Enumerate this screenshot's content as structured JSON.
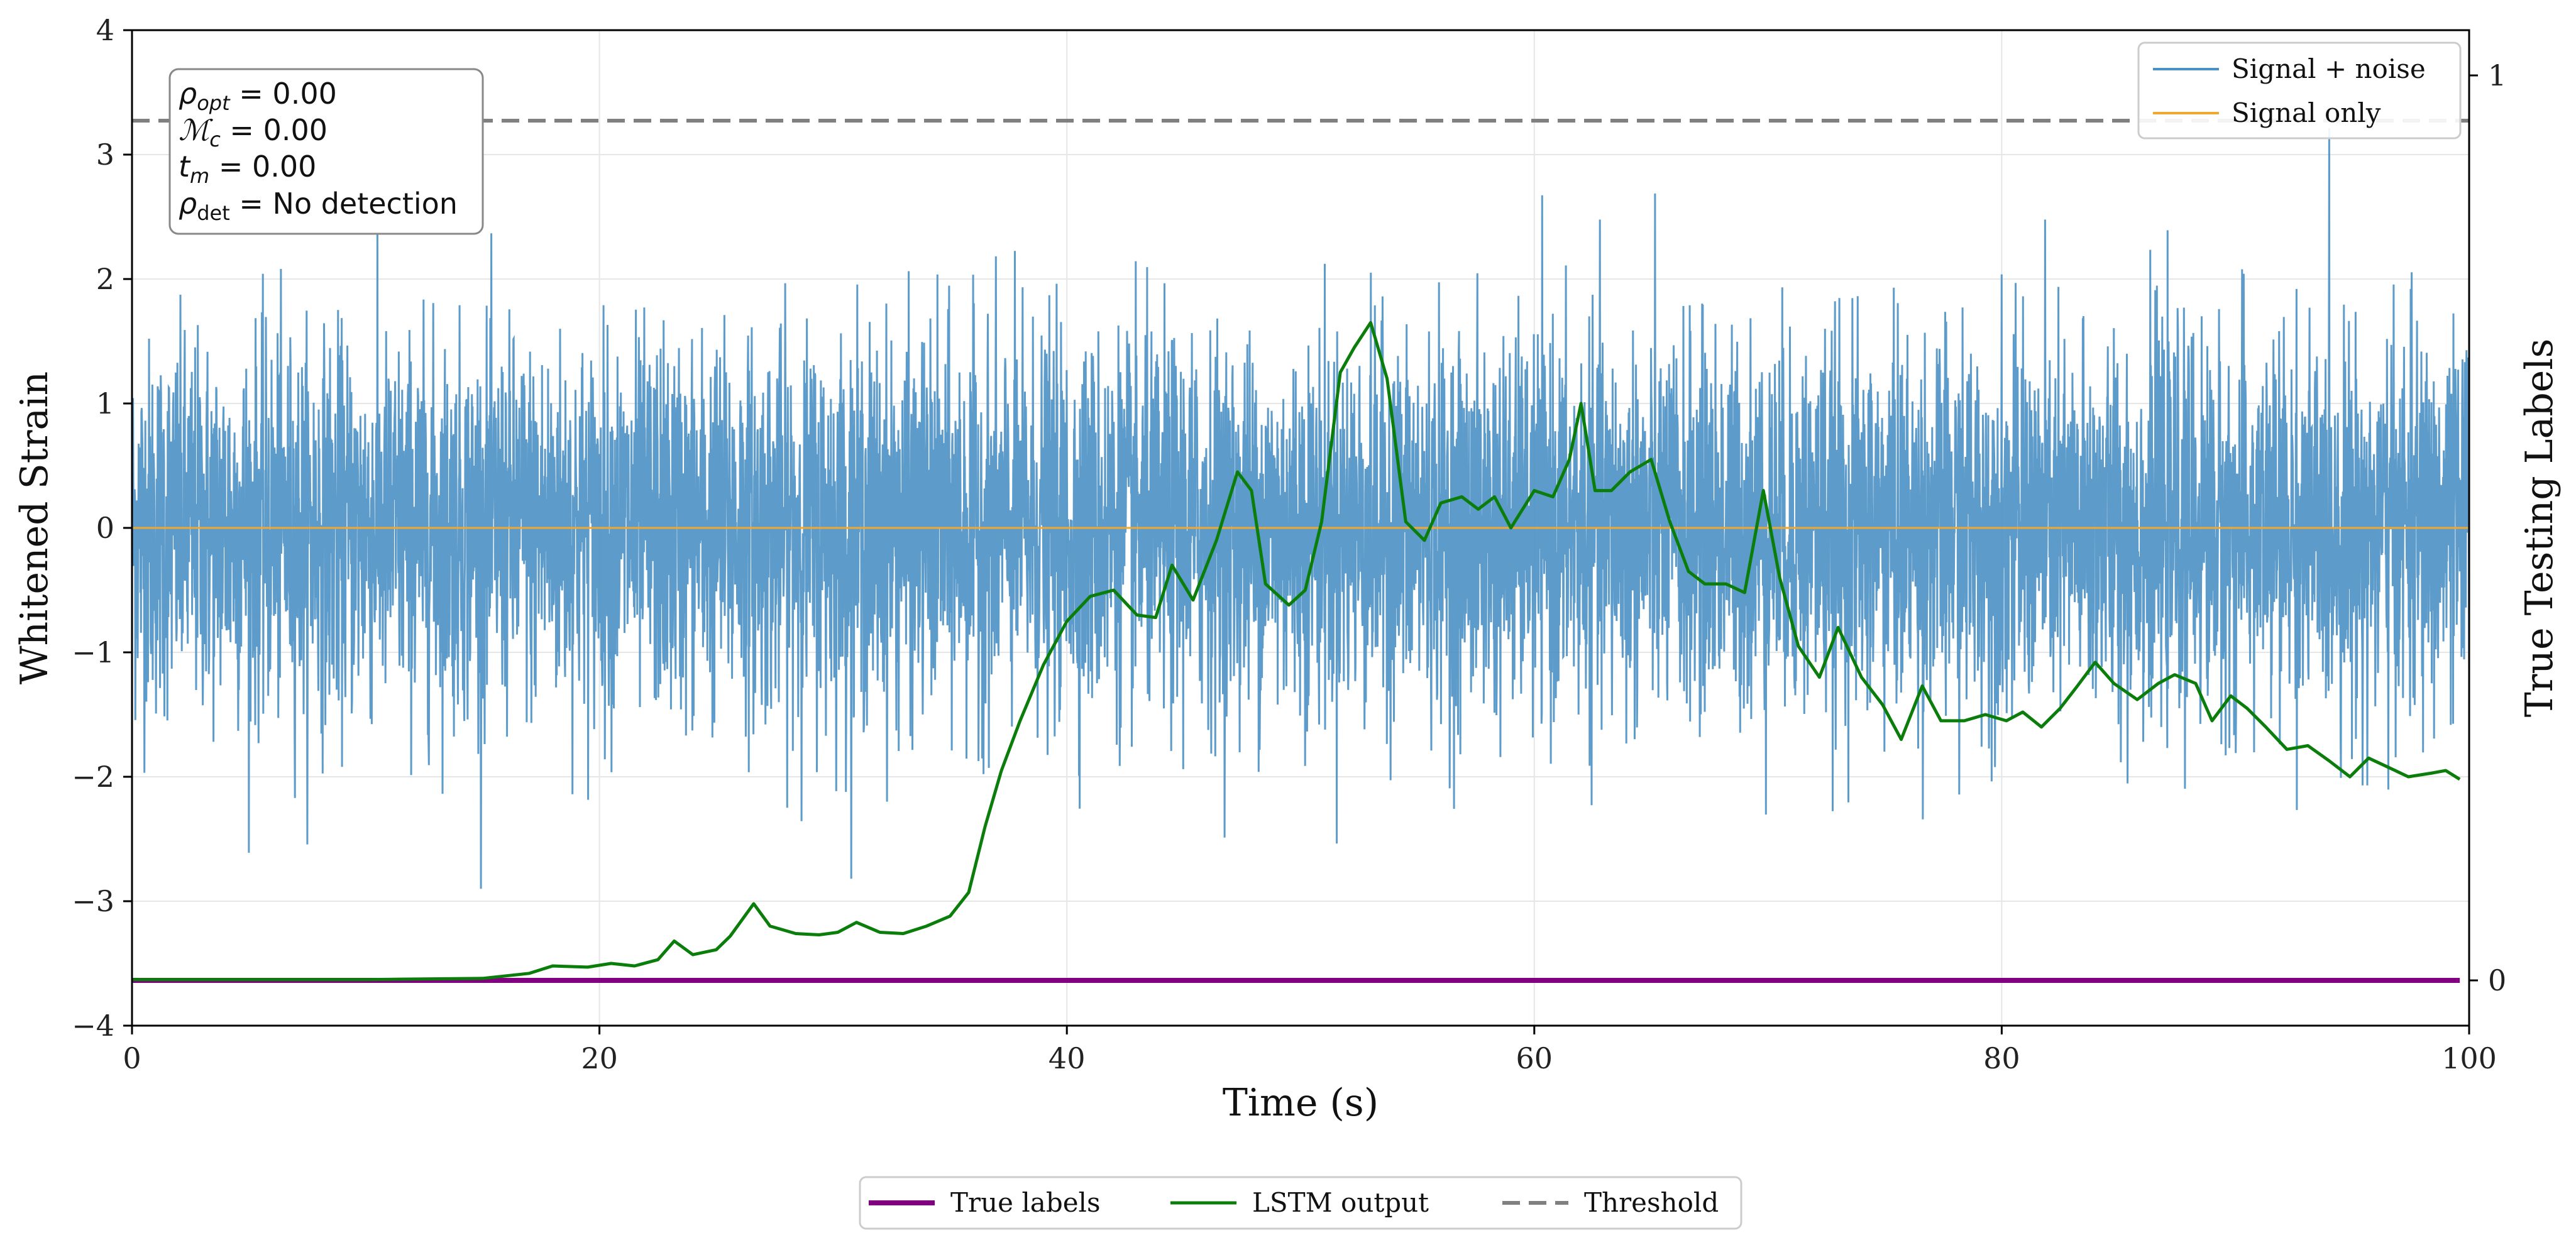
{
  "chart_data": {
    "type": "line",
    "xlabel": "Time (s)",
    "ylabel": "Whitened Strain",
    "y2label": "True Testing Labels",
    "xlim": [
      0,
      100
    ],
    "ylim": [
      -4,
      4
    ],
    "y2lim": [
      -0.05,
      1.05
    ],
    "xticks": [
      "0",
      "20",
      "40",
      "60",
      "80",
      "100"
    ],
    "yticks": [
      "4",
      "3",
      "2",
      "1",
      "0",
      "−1",
      "−2",
      "−3",
      "−4"
    ],
    "y2ticks": [
      "1",
      "0"
    ],
    "stats": {
      "rho_opt": "= 0.00",
      "mc": "= 0.00",
      "tm": "= 0.00",
      "rho_det": "= No detection"
    },
    "legend_upper": [
      "Signal + noise",
      "Signal only"
    ],
    "legend_lower": [
      "True labels",
      "LSTM output",
      "Threshold"
    ],
    "colors": {
      "noise": "#4a90c4",
      "signal": "#f0a830",
      "true_labels": "#800080",
      "lstm": "#0a7d0a",
      "threshold": "#808080"
    },
    "series": [
      {
        "name": "Signal + noise",
        "axis": "left",
        "description_values": "stationary noise, approx. std 0.75, range -2.9 to 4.0",
        "noise_std": 0.75
      },
      {
        "name": "Signal only",
        "axis": "left",
        "x": [
          0,
          100
        ],
        "values": [
          0,
          0
        ]
      },
      {
        "name": "True labels",
        "axis": "right",
        "x": [
          0,
          100
        ],
        "values": [
          0,
          0
        ]
      },
      {
        "name": "Threshold",
        "axis": "right",
        "x": [
          0,
          100
        ],
        "values": [
          0.95,
          0.95
        ]
      },
      {
        "name": "LSTM output",
        "axis": "left",
        "x": [
          0,
          10,
          15,
          17,
          18,
          19.5,
          20.5,
          21.5,
          22.5,
          23.2,
          24,
          25,
          25.6,
          26.6,
          27.3,
          28.4,
          29.4,
          30.2,
          31,
          32,
          33,
          34,
          35,
          35.8,
          36.5,
          37.2,
          38,
          39,
          40,
          41,
          42,
          43,
          43.8,
          44.5,
          45.4,
          46.4,
          47.3,
          47.9,
          48.5,
          49.5,
          50.2,
          50.9,
          51.7,
          52.3,
          53,
          53.7,
          54.5,
          55.3,
          56,
          56.9,
          57.6,
          58.3,
          59,
          60,
          60.8,
          61.5,
          62,
          62.6,
          63.3,
          64.1,
          65,
          65.8,
          66.6,
          67.3,
          68.2,
          69,
          69.8,
          70.5,
          71.3,
          72.2,
          73,
          74,
          74.9,
          75.7,
          76.6,
          77.4,
          78.4,
          79.3,
          80.2,
          80.9,
          81.7,
          82.5,
          83.2,
          84,
          84.8,
          85.8,
          86.7,
          87.4,
          88.3,
          89,
          89.8,
          90.5,
          91.3,
          92.2,
          93.1,
          94,
          94.9,
          95.7,
          96.5,
          97.4,
          98.4,
          99,
          99.6
        ],
        "values": [
          -3.63,
          -3.63,
          -3.62,
          -3.58,
          -3.52,
          -3.53,
          -3.5,
          -3.52,
          -3.47,
          -3.32,
          -3.43,
          -3.39,
          -3.28,
          -3.02,
          -3.2,
          -3.26,
          -3.27,
          -3.25,
          -3.17,
          -3.25,
          -3.26,
          -3.2,
          -3.12,
          -2.93,
          -2.4,
          -1.95,
          -1.55,
          -1.1,
          -0.75,
          -0.55,
          -0.5,
          -0.7,
          -0.72,
          -0.3,
          -0.58,
          -0.1,
          0.45,
          0.3,
          -0.45,
          -0.62,
          -0.5,
          0.05,
          1.25,
          1.45,
          1.65,
          1.2,
          0.05,
          -0.1,
          0.2,
          0.25,
          0.15,
          0.25,
          0.0,
          0.3,
          0.25,
          0.55,
          1.0,
          0.3,
          0.3,
          0.45,
          0.55,
          0.05,
          -0.35,
          -0.45,
          -0.45,
          -0.52,
          0.3,
          -0.4,
          -0.95,
          -1.2,
          -0.8,
          -1.2,
          -1.42,
          -1.7,
          -1.27,
          -1.55,
          -1.55,
          -1.5,
          -1.55,
          -1.48,
          -1.6,
          -1.45,
          -1.28,
          -1.08,
          -1.25,
          -1.38,
          -1.25,
          -1.18,
          -1.25,
          -1.55,
          -1.35,
          -1.45,
          -1.6,
          -1.78,
          -1.75,
          -1.87,
          -2.0,
          -1.85,
          -1.92,
          -2.0,
          -1.97,
          -1.95,
          -2.02
        ]
      }
    ]
  }
}
